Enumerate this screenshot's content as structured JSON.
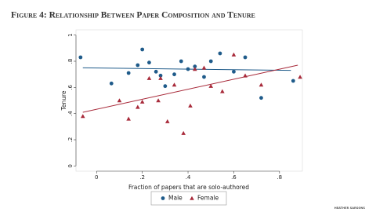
{
  "chart_data": {
    "type": "scatter",
    "title": "Figure 4: Relationship Between Paper Composition and Tenure",
    "x_label": "Fraction of papers that are solo-authored",
    "y_label": "Tenure",
    "watermark": "HEATHER SARSONS",
    "xlim": [
      -0.09,
      0.9
    ],
    "ylim": [
      -0.04,
      1.04
    ],
    "xticks": [
      0,
      {
        "value": 0.2,
        "label": ".2"
      },
      {
        "value": 0.4,
        "label": ".4"
      },
      {
        "value": 0.6,
        "label": ".6"
      },
      {
        "value": 0.8,
        "label": ".8"
      }
    ],
    "yticks": [
      0,
      {
        "value": 0.2,
        "label": ".2"
      },
      {
        "value": 0.4,
        "label": ".4"
      },
      {
        "value": 0.6,
        "label": ".6"
      },
      {
        "value": 0.8,
        "label": ".8"
      },
      1
    ],
    "series": [
      {
        "name": "Male",
        "color": "#1f5b8a",
        "marker": "circle",
        "x": [
          -0.07,
          0.065,
          0.14,
          0.18,
          0.2,
          0.23,
          0.26,
          0.28,
          0.3,
          0.34,
          0.37,
          0.4,
          0.43,
          0.47,
          0.5,
          0.54,
          0.6,
          0.65,
          0.72,
          0.86
        ],
        "values": [
          0.83,
          0.63,
          0.71,
          0.77,
          0.89,
          0.79,
          0.72,
          0.69,
          0.61,
          0.7,
          0.8,
          0.74,
          0.76,
          0.68,
          0.8,
          0.86,
          0.72,
          0.83,
          0.52,
          0.65
        ],
        "fit_x": [
          -0.06,
          0.85
        ],
        "fit_y": [
          0.75,
          0.73
        ]
      },
      {
        "name": "Female",
        "color": "#a82a3a",
        "marker": "triangle",
        "x": [
          -0.06,
          0.1,
          0.14,
          0.18,
          0.2,
          0.23,
          0.27,
          0.28,
          0.31,
          0.34,
          0.38,
          0.41,
          0.43,
          0.47,
          0.5,
          0.55,
          0.6,
          0.65,
          0.72,
          0.89
        ],
        "values": [
          0.38,
          0.5,
          0.36,
          0.45,
          0.49,
          0.67,
          0.5,
          0.67,
          0.34,
          0.62,
          0.25,
          0.46,
          0.74,
          0.75,
          0.61,
          0.57,
          0.85,
          0.69,
          0.62,
          0.68
        ],
        "fit_x": [
          -0.06,
          0.88
        ],
        "fit_y": [
          0.41,
          0.77
        ]
      }
    ]
  }
}
